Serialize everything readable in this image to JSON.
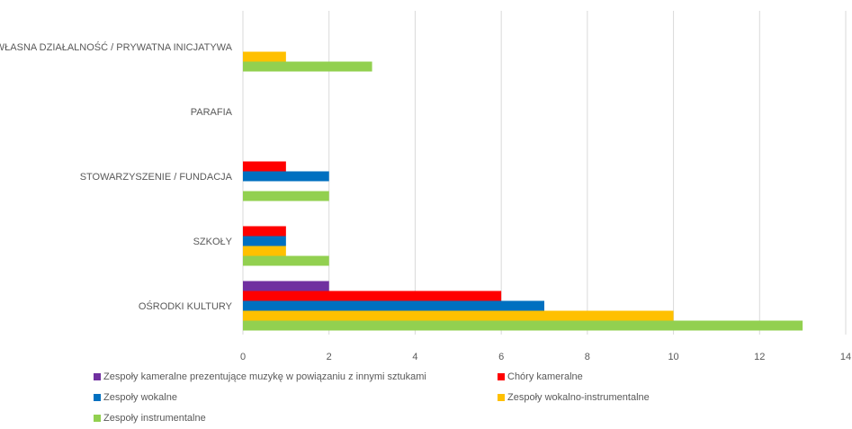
{
  "chart_data": {
    "type": "bar",
    "orientation": "horizontal",
    "categories": [
      "WŁASNA DZIAŁALNOŚĆ / PRYWATNA INICJATYWA",
      "PARAFIA",
      "STOWARZYSZENIE / FUNDACJA",
      "SZKOŁY",
      "OŚRODKI KULTURY"
    ],
    "series": [
      {
        "name": "Zespoły kameralne prezentujące muzykę w powiązaniu z innymi sztukami",
        "color": "#7030A0",
        "values": [
          0,
          0,
          0,
          0,
          2
        ]
      },
      {
        "name": "Chóry kameralne",
        "color": "#FF0000",
        "values": [
          0,
          0,
          1,
          1,
          6
        ]
      },
      {
        "name": "Zespoły wokalne",
        "color": "#0070C0",
        "values": [
          0,
          0,
          2,
          1,
          7
        ]
      },
      {
        "name": "Zespoły wokalno-instrumentalne",
        "color": "#FFC000",
        "values": [
          1,
          0,
          0,
          1,
          10
        ]
      },
      {
        "name": "Zespoły instrumentalne",
        "color": "#92D050",
        "values": [
          3,
          0,
          2,
          2,
          13
        ]
      }
    ],
    "xlim": [
      0,
      14
    ],
    "xticks": [
      "0",
      "2",
      "4",
      "6",
      "8",
      "10",
      "12",
      "14"
    ],
    "grid": true,
    "legend": "bottom",
    "title": "",
    "xlabel": "",
    "ylabel": ""
  }
}
